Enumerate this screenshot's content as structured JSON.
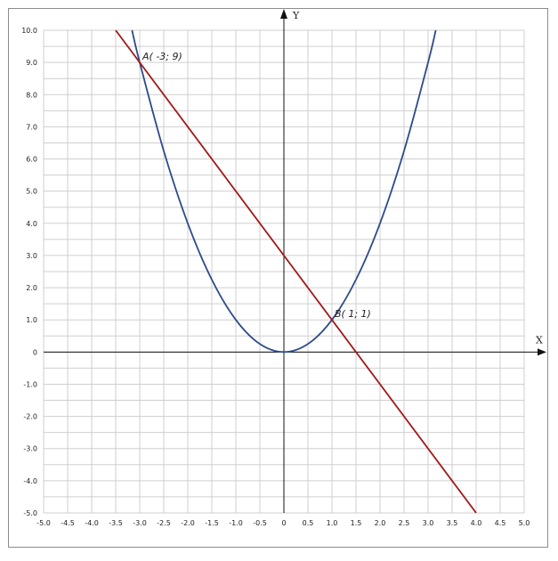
{
  "chart_data": {
    "type": "line",
    "xlim": [
      -5.0,
      5.0
    ],
    "ylim": [
      -5.0,
      10.0
    ],
    "grid": true,
    "grid_step": 0.5,
    "xlabel": "X",
    "ylabel": "Y",
    "x_ticks": [
      "-5.0",
      "-4.5",
      "-4.0",
      "-3.5",
      "-3.0",
      "-2.5",
      "-2.0",
      "-1.5",
      "-1.0",
      "-0.5",
      "0",
      "0.5",
      "1.0",
      "1.5",
      "2.0",
      "2.5",
      "3.0",
      "3.5",
      "4.0",
      "4.5",
      "5.0"
    ],
    "y_ticks": [
      "10.0",
      "9.0",
      "8.0",
      "7.0",
      "6.0",
      "5.0",
      "4.0",
      "3.0",
      "2.0",
      "1.0",
      "0",
      "-1.0",
      "-2.0",
      "-3.0",
      "-4.0",
      "-5.0"
    ],
    "series": [
      {
        "color": "#2d4a8a",
        "x": [
          -3.16,
          -3.0,
          -2.5,
          -2.0,
          -1.5,
          -1.0,
          -0.5,
          0,
          0.5,
          1.0,
          1.5,
          2.0,
          2.5,
          3.0,
          3.16
        ],
        "y": [
          10.0,
          9.0,
          6.25,
          4.0,
          2.25,
          1.0,
          0.25,
          0,
          0.25,
          1.0,
          2.25,
          4.0,
          6.25,
          9.0,
          10.0
        ]
      },
      {
        "color": "#a01818",
        "x": [
          -3.5,
          4.0
        ],
        "y": [
          10.0,
          -5.0
        ]
      }
    ],
    "annotations": [
      {
        "label": "A( -3; 9)",
        "x": -3,
        "y": 9
      },
      {
        "label": "B( 1; 1)",
        "x": 1,
        "y": 1
      }
    ]
  }
}
